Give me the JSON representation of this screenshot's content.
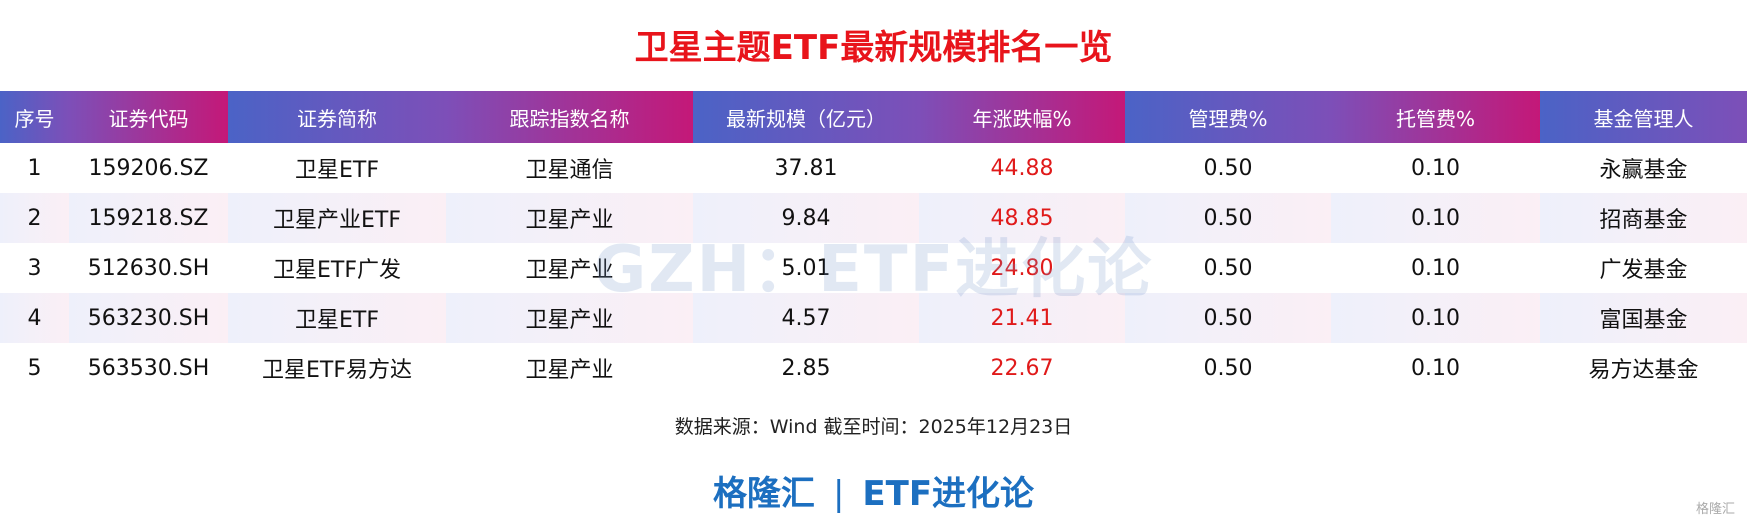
{
  "header": {
    "title": "卫星主题ETF最新规模排名一览"
  },
  "table": {
    "columns": [
      "序号",
      "证券代码",
      "证券简称",
      "跟踪指数名称",
      "最新规模（亿元）",
      "年涨跌幅%",
      "管理费%",
      "托管费%",
      "基金管理人"
    ],
    "rows": [
      [
        "1",
        "159206.SZ",
        "卫星ETF",
        "卫星通信",
        "37.81",
        "44.88",
        "0.50",
        "0.10",
        "永赢基金"
      ],
      [
        "2",
        "159218.SZ",
        "卫星产业ETF",
        "卫星产业",
        "9.84",
        "48.85",
        "0.50",
        "0.10",
        "招商基金"
      ],
      [
        "3",
        "512630.SH",
        "卫星ETF广发",
        "卫星产业",
        "5.01",
        "24.80",
        "0.50",
        "0.10",
        "广发基金"
      ],
      [
        "4",
        "563230.SH",
        "卫星ETF",
        "卫星产业",
        "4.57",
        "21.41",
        "0.50",
        "0.10",
        "富国基金"
      ],
      [
        "5",
        "563530.SH",
        "卫星ETF易方达",
        "卫星产业",
        "2.85",
        "22.67",
        "0.50",
        "0.10",
        "易方达基金"
      ]
    ]
  },
  "watermark": "GZH：ETF进化论",
  "source": "数据来源：Wind 截至时间：2025年12月23日",
  "footer": {
    "brand": "格隆汇",
    "channel": "ETF进化论",
    "logo": "格隆汇"
  }
}
